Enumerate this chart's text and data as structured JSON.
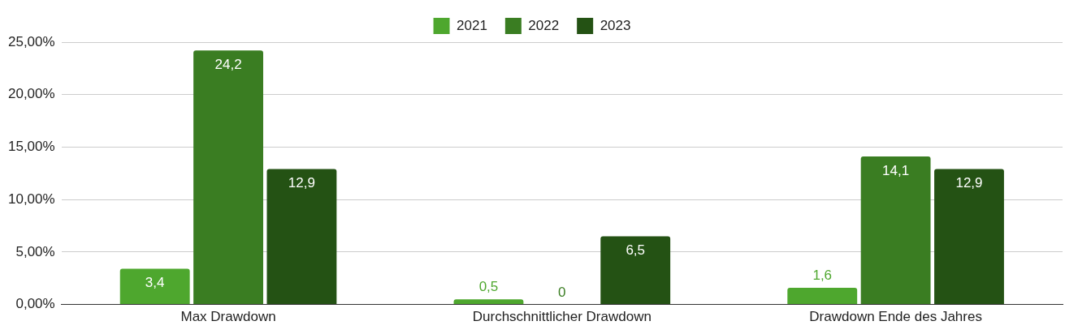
{
  "chart_data": {
    "type": "bar",
    "categories": [
      "Max Drawdown",
      "Durchschnittlicher Drawdown",
      "Drawdown Ende des Jahres"
    ],
    "series": [
      {
        "name": "2021",
        "color": "#4ea72e",
        "values": [
          3.4,
          0.5,
          1.6
        ],
        "value_labels": [
          "3,4",
          "0,5",
          "1,6"
        ]
      },
      {
        "name": "2022",
        "color": "#3a7d22",
        "values": [
          24.2,
          0,
          14.1
        ],
        "value_labels": [
          "24,2",
          "0",
          "14,1"
        ]
      },
      {
        "name": "2023",
        "color": "#245214",
        "values": [
          12.9,
          6.5,
          12.9
        ],
        "value_labels": [
          "12,9",
          "6,5",
          "12,9"
        ]
      }
    ],
    "ylim": [
      0,
      25
    ],
    "yticks": [
      {
        "value": 0,
        "label": "0,00%"
      },
      {
        "value": 5,
        "label": "5,00%"
      },
      {
        "value": 10,
        "label": "10,00%"
      },
      {
        "value": 15,
        "label": "15,00%"
      },
      {
        "value": 20,
        "label": "20,00%"
      },
      {
        "value": 25,
        "label": "25,00%"
      }
    ],
    "grid": "y",
    "legend": "top"
  }
}
